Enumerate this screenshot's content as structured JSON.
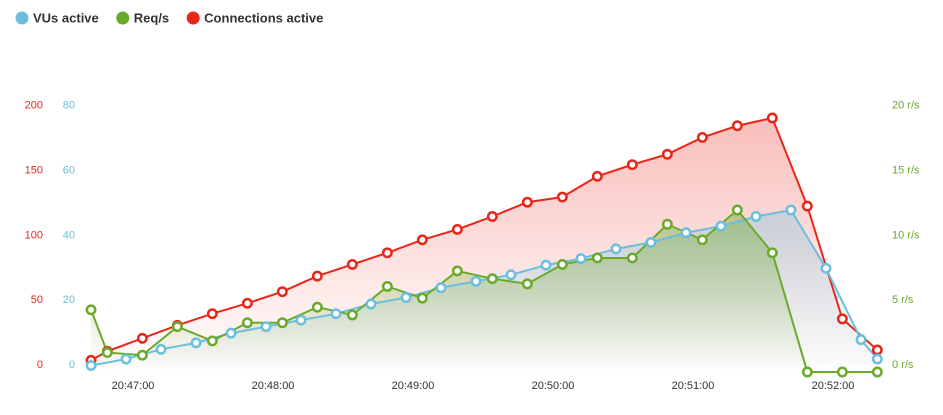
{
  "chart_data": {
    "type": "line",
    "legend": "top-left",
    "grid": true,
    "xlim": [
      "20:46:41",
      "20:52:21"
    ],
    "xticks": [
      "20:47:00",
      "20:48:00",
      "20:49:00",
      "20:50:00",
      "20:51:00",
      "20:52:00"
    ],
    "ylim": [
      0,
      250
    ],
    "yticks": [
      0,
      50,
      100,
      150,
      200
    ],
    "y2lim": [
      0,
      100
    ],
    "y2ticks": [
      0,
      20,
      40,
      60,
      80
    ],
    "y3lim": [
      0,
      25
    ],
    "y3ticks": [
      {
        "value": 0,
        "label": "0 r/s"
      },
      {
        "value": 5,
        "label": "5 r/s"
      },
      {
        "value": 10,
        "label": "10 r/s"
      },
      {
        "value": 15,
        "label": "15 r/s"
      },
      {
        "value": 20,
        "label": "20 r/s"
      }
    ],
    "series": [
      {
        "name": "VUs active",
        "color": "#6bbfdc",
        "axis": "y2",
        "x": [
          "20:46:42",
          "20:46:57",
          "20:47:12",
          "20:47:27",
          "20:47:42",
          "20:47:57",
          "20:48:12",
          "20:48:27",
          "20:48:42",
          "20:48:57",
          "20:49:12",
          "20:49:27",
          "20:49:42",
          "20:49:57",
          "20:50:12",
          "20:50:27",
          "20:50:42",
          "20:50:57",
          "20:51:12",
          "20:51:27",
          "20:51:42",
          "20:51:57",
          "20:52:12",
          "20:52:19"
        ],
        "values": [
          2,
          4,
          7,
          9,
          12,
          14,
          16,
          18,
          21,
          23,
          26,
          28,
          30,
          33,
          35,
          38,
          40,
          43,
          45,
          48,
          50,
          32,
          10,
          4
        ]
      },
      {
        "name": "Req/s",
        "color": "#6aaa2a",
        "axis": "y3",
        "x": [
          "20:46:42",
          "20:46:49",
          "20:47:04",
          "20:47:19",
          "20:47:34",
          "20:47:49",
          "20:48:04",
          "20:48:19",
          "20:48:34",
          "20:48:49",
          "20:49:04",
          "20:49:19",
          "20:49:34",
          "20:49:49",
          "20:50:04",
          "20:50:19",
          "20:50:34",
          "20:50:49",
          "20:51:04",
          "20:51:19",
          "20:51:34",
          "20:51:49",
          "20:52:04",
          "20:52:19"
        ],
        "values": [
          4.8,
          1.5,
          1.3,
          3.5,
          2.4,
          3.8,
          3.8,
          5,
          4.4,
          6.6,
          5.7,
          7.8,
          7.2,
          6.8,
          8.3,
          8.8,
          8.8,
          11.4,
          10.2,
          12.5,
          9.2,
          0,
          0,
          0
        ]
      },
      {
        "name": "Connections active",
        "color": "#e8261a",
        "axis": "y",
        "x": [
          "20:46:42",
          "20:46:49",
          "20:47:04",
          "20:47:19",
          "20:47:34",
          "20:47:49",
          "20:48:04",
          "20:48:19",
          "20:48:34",
          "20:48:49",
          "20:49:04",
          "20:49:19",
          "20:49:34",
          "20:49:49",
          "20:50:04",
          "20:50:19",
          "20:50:34",
          "20:50:49",
          "20:51:04",
          "20:51:19",
          "20:51:34",
          "20:51:49",
          "20:52:04",
          "20:52:19"
        ],
        "values": [
          9,
          16,
          26,
          36,
          45,
          53,
          62,
          74,
          83,
          92,
          102,
          110,
          120,
          131,
          135,
          151,
          160,
          168,
          181,
          190,
          196,
          128,
          41,
          17
        ]
      }
    ]
  }
}
